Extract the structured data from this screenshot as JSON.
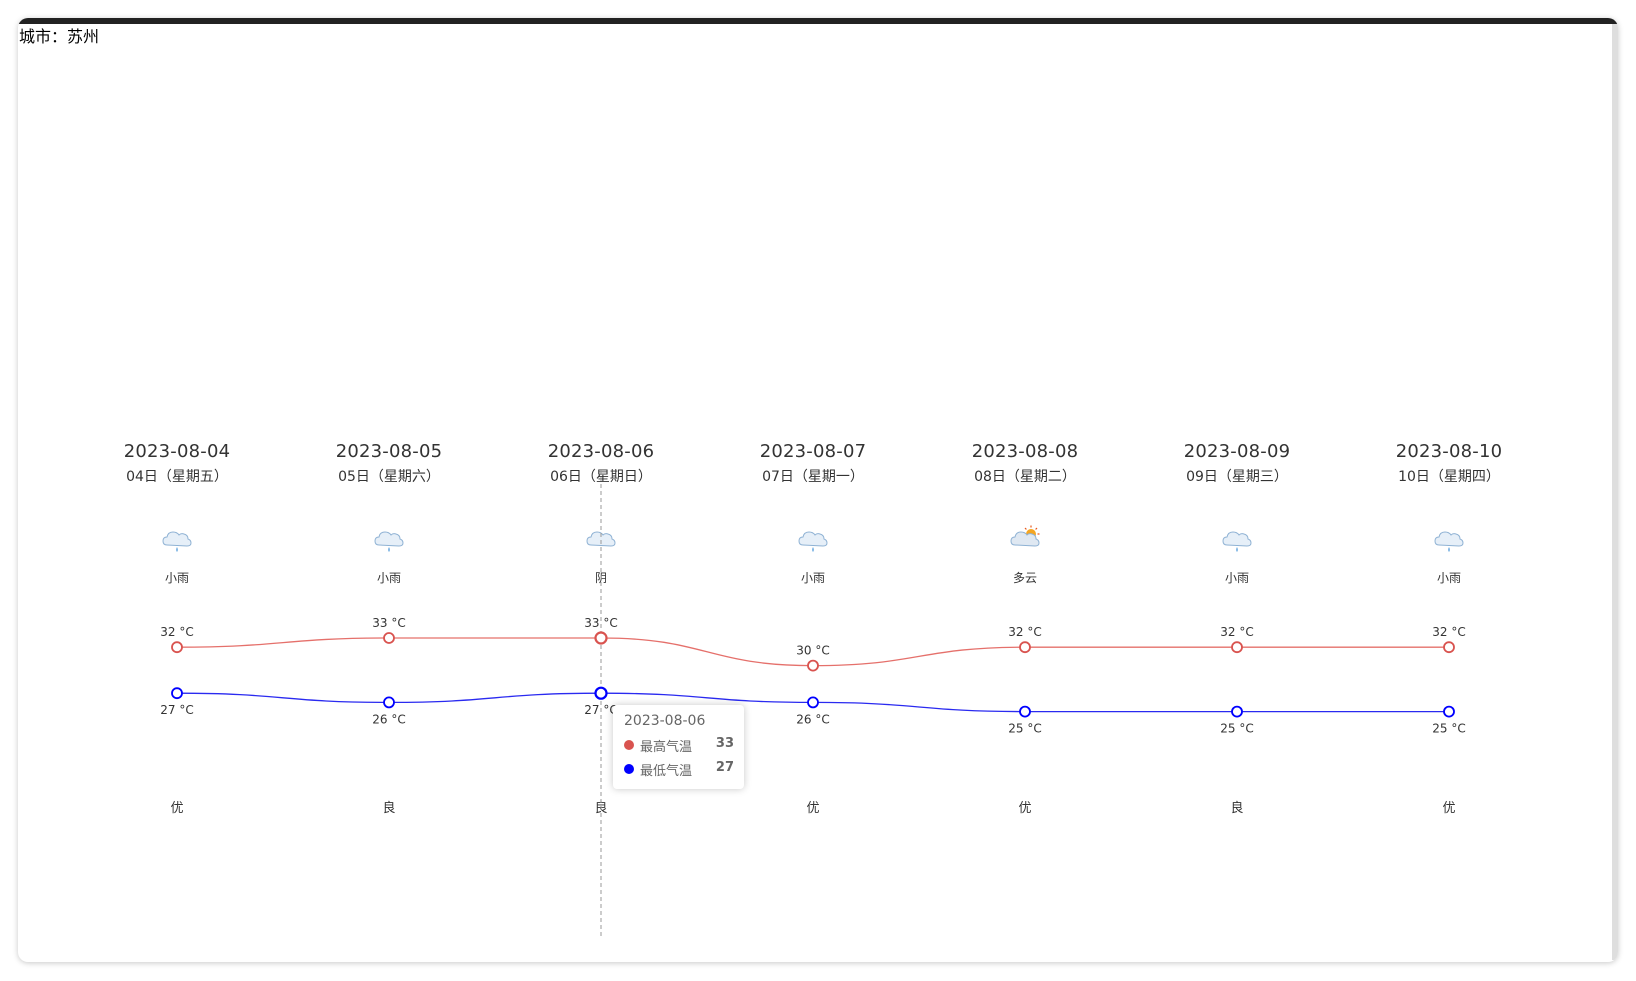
{
  "city_label": "城市：苏州",
  "colors": {
    "high": "#d9534f",
    "low": "#0000ff",
    "high_line": "#e5706b",
    "low_line": "#2a2af0"
  },
  "chart_data": {
    "type": "line",
    "categories": [
      "2023-08-04",
      "2023-08-05",
      "2023-08-06",
      "2023-08-07",
      "2023-08-08",
      "2023-08-09",
      "2023-08-10"
    ],
    "day_labels": [
      "04日（星期五）",
      "05日（星期六）",
      "06日（星期日）",
      "07日（星期一）",
      "08日（星期二）",
      "09日（星期三）",
      "10日（星期四）"
    ],
    "weather": [
      {
        "text": "小雨",
        "icon": "light-rain-icon"
      },
      {
        "text": "小雨",
        "icon": "light-rain-icon"
      },
      {
        "text": "阴",
        "icon": "overcast-icon"
      },
      {
        "text": "小雨",
        "icon": "light-rain-icon"
      },
      {
        "text": "多云",
        "icon": "partly-cloudy-icon"
      },
      {
        "text": "小雨",
        "icon": "light-rain-icon"
      },
      {
        "text": "小雨",
        "icon": "light-rain-icon"
      }
    ],
    "air_quality": [
      "优",
      "良",
      "良",
      "优",
      "优",
      "良",
      "优"
    ],
    "unit": "°C",
    "series": [
      {
        "name": "最高气温",
        "values": [
          32,
          33,
          33,
          30,
          32,
          32,
          32
        ]
      },
      {
        "name": "最低气温",
        "values": [
          27,
          26,
          27,
          26,
          25,
          25,
          25
        ]
      }
    ],
    "smooth": true,
    "tooltip": {
      "category": "2023-08-06",
      "rows": [
        {
          "name": "最高气温",
          "value": "33"
        },
        {
          "name": "最低气温",
          "value": "27"
        }
      ]
    }
  }
}
